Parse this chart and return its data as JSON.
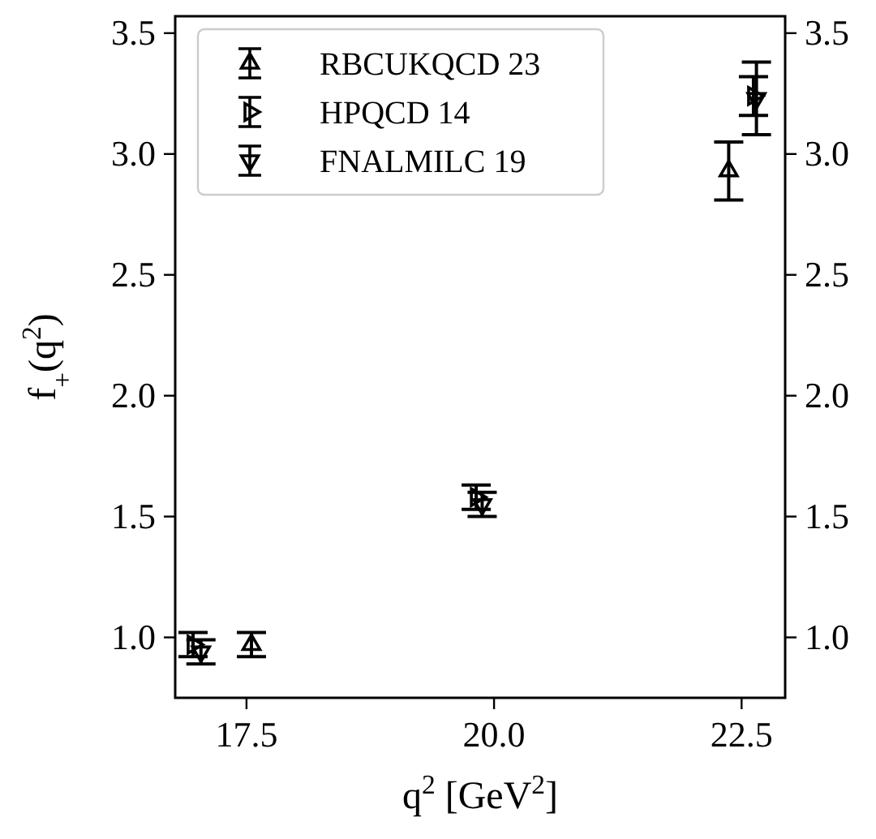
{
  "chart_data": {
    "type": "scatter",
    "xlabel": "q$^{2}$ [GeV$^{2}$]",
    "ylabel": "f$_{+}$(q$^{2}$)",
    "xlim": [
      16.78,
      22.94
    ],
    "xticks": [
      17.5,
      {
        "value": 20,
        "label": "20.0"
      },
      22.5
    ],
    "ylim": [
      0.75,
      3.57
    ],
    "yticks": [
      {
        "value": 1,
        "label": "1.0"
      },
      1.5,
      {
        "value": 2,
        "label": "2.0"
      },
      2.5,
      {
        "value": 3,
        "label": "3.0"
      },
      3.5
    ],
    "y2lim": [
      0.75,
      3.57
    ],
    "y2ticks": [
      {
        "value": 1,
        "label": "1.0"
      },
      1.5,
      {
        "value": 2,
        "label": "2.0"
      },
      2.5,
      {
        "value": 3,
        "label": "3.0"
      },
      3.5
    ],
    "legend": "top left",
    "grid": false,
    "series": [
      {
        "name": "RBCUKQCD 23",
        "color": "#000000",
        "marker": "triangle",
        "x": [
          17.55,
          22.37
        ],
        "values": [
          0.97,
          2.93
        ],
        "errors": [
          0.05,
          0.12
        ]
      },
      {
        "name": "HPQCD 14",
        "color": "#000000",
        "marker": "triangle",
        "x": [
          16.96,
          19.82,
          22.62
        ],
        "values": [
          0.97,
          1.58,
          3.24
        ],
        "errors": [
          0.05,
          0.05,
          0.08
        ]
      },
      {
        "name": "FNALMILC 19",
        "color": "#000000",
        "marker": "triangle",
        "x": [
          17.04,
          19.88,
          22.65
        ],
        "values": [
          0.94,
          1.55,
          3.23
        ],
        "errors": [
          0.05,
          0.05,
          0.15
        ]
      }
    ]
  }
}
